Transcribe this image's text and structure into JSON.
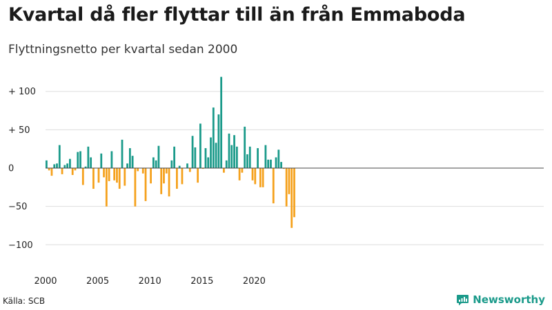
{
  "title": "Kvartal då fler flyttar till än från Emmaboda",
  "subtitle": "Flyttningsnetto per kvartal sedan 2000",
  "source": "Källa: SCB",
  "brand": {
    "name": "Newsworthy",
    "icon": "newsworthy-logo-icon",
    "color": "#1a9a8a"
  },
  "colors": {
    "positive": "#1a9a8a",
    "negative": "#f5a11c",
    "grid": "#dddddd",
    "zero_line": "#444444"
  },
  "chart_data": {
    "type": "bar",
    "title": "Kvartal då fler flyttar till än från Emmaboda",
    "subtitle": "Flyttningsnetto per kvartal sedan 2000",
    "x_start": "2000 Q1",
    "x_tick_labels": [
      "2000",
      "2005",
      "2010",
      "2015",
      "2020"
    ],
    "y_tick_labels": [
      "+ 100",
      "+  50",
      "0",
      "−50",
      "−100"
    ],
    "y_ticks": [
      100,
      50,
      0,
      -50,
      -100
    ],
    "ylim": [
      -120,
      120
    ],
    "grid": true,
    "positive_color": "#1a9a8a",
    "negative_color": "#f5a11c",
    "values": [
      10,
      -3,
      -10,
      5,
      6,
      30,
      -8,
      4,
      6,
      12,
      -9,
      -3,
      21,
      22,
      -22,
      2,
      28,
      14,
      -27,
      0,
      -19,
      19,
      -12,
      -50,
      -17,
      22,
      -16,
      -19,
      -27,
      37,
      -23,
      6,
      26,
      16,
      -50,
      -4,
      0,
      -7,
      -43,
      0,
      -20,
      14,
      10,
      29,
      -34,
      -20,
      -7,
      -37,
      10,
      28,
      -27,
      3,
      -21,
      0,
      6,
      -5,
      42,
      27,
      -19,
      58,
      -1,
      26,
      14,
      40,
      79,
      33,
      70,
      119,
      -6,
      10,
      45,
      30,
      43,
      28,
      -16,
      -6,
      54,
      18,
      28,
      -16,
      -21,
      26,
      -25,
      -25,
      30,
      11,
      11,
      -46,
      14,
      24,
      8,
      -1,
      -50,
      -34,
      -78,
      -64
    ]
  }
}
